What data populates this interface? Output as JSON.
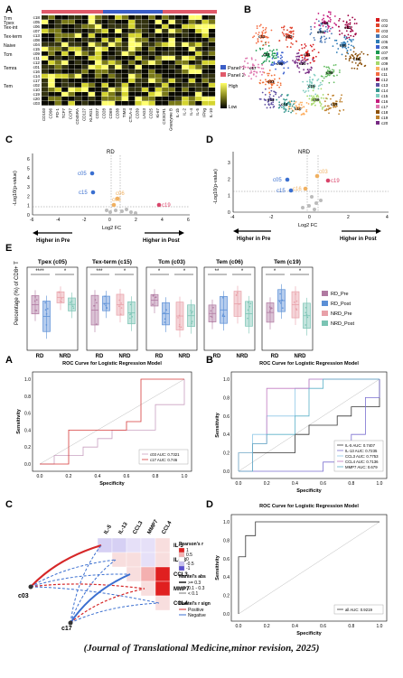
{
  "panel_letters": {
    "top": [
      "A",
      "B",
      "C",
      "D",
      "E"
    ],
    "bottom": [
      "A",
      "B",
      "C",
      "D"
    ]
  },
  "heatmap": {
    "rows": [
      "c18",
      "c05",
      "c06",
      "c07",
      "c13",
      "c08",
      "c04",
      "c15",
      "c09",
      "c11",
      "c12",
      "c01",
      "c16",
      "c14",
      "c17",
      "c02",
      "c10",
      "c19",
      "c20",
      "c03"
    ],
    "group_labels": [
      "Trm",
      "Tpex",
      "Tex-int",
      "Tex-term",
      "Naive",
      "Tcm",
      "Temra",
      "Tem"
    ],
    "columns": [
      "CD103",
      "CD96",
      "PD-1",
      "TCF7",
      "CCR7",
      "CD45RA",
      "CD127",
      "KLRG1",
      "CD27",
      "CD28",
      "CD69",
      "CD38",
      "TIM3",
      "CTLA-4",
      "CD39",
      "LAG3",
      "CD25",
      "Ki-67",
      "CX3CR1",
      "Granzyme B",
      "IL-1b",
      "IL-2",
      "IL-4",
      "IL-5",
      "IFNg",
      "IL-10"
    ],
    "legend": {
      "panel1": "Panel 1",
      "panel2": "Panel 2",
      "high": "High",
      "low": "Low"
    }
  },
  "umap": {
    "cluster_labels": [
      "c01",
      "c02",
      "c03",
      "c04",
      "c05",
      "c06",
      "c07",
      "c08",
      "c09",
      "c10",
      "c11",
      "c12",
      "c13",
      "c14",
      "c15",
      "c16",
      "c17",
      "c18",
      "c19",
      "c20"
    ],
    "colors": [
      "#d7191c",
      "#e0402a",
      "#f07038",
      "#4575b4",
      "#2c7bb6",
      "#3a5fcd",
      "#1a9850",
      "#66bd63",
      "#a6d96a",
      "#fdae61",
      "#f46d43",
      "#9e0142",
      "#5e4fa2",
      "#35978f",
      "#80cdc1",
      "#c51b7d",
      "#de77ae",
      "#8c510a",
      "#bf812d",
      "#762a83"
    ]
  },
  "volcano_C": {
    "title": "RD",
    "ylabel": "-Log10(p-value)",
    "xlabel": "Log2 FC",
    "xticks": [
      "-6",
      "-4",
      "-2",
      "0",
      "2",
      "4",
      "6"
    ],
    "yticks": [
      "0",
      "1",
      "2",
      "3",
      "4",
      "5",
      "6"
    ],
    "labels": [
      "c05",
      "c15",
      "c06",
      "c03",
      "c19"
    ],
    "arrows": {
      "left": "Higher in Pre",
      "right": "Higher in Post"
    }
  },
  "volcano_D": {
    "title": "NRD",
    "ylabel": "-Log10(p-value)",
    "xlabel": "Log2 FC",
    "xticks": [
      "-4",
      "-2",
      "0",
      "2",
      "4"
    ],
    "yticks": [
      "0",
      "1",
      "2",
      "3"
    ],
    "labels": [
      "c05",
      "c15",
      "c16",
      "c03",
      "c19"
    ],
    "arrows": {
      "left": "Higher in Pre",
      "right": "Higher in Post"
    }
  },
  "boxplots": {
    "ylabel": "Percentage (%) of CD8+ T",
    "panels": [
      {
        "title": "Tpex (c05)",
        "sig": [
          "****",
          "*"
        ]
      },
      {
        "title": "Tex-term (c15)",
        "sig": [
          "***",
          "*"
        ]
      },
      {
        "title": "Tcm (c03)",
        "sig": [
          "*",
          "*"
        ]
      },
      {
        "title": "Tem (c06)",
        "sig": [
          "**",
          "*"
        ]
      },
      {
        "title": "Tem (c19)",
        "sig": [
          "*",
          "*"
        ]
      }
    ],
    "xgroups": [
      "RD",
      "NRD"
    ],
    "legend": [
      "RD_Pre",
      "RD_Post",
      "NRD_Pre",
      "NRD_Post"
    ],
    "legend_colors": [
      "#b07aa1",
      "#5b8fd6",
      "#e8a0a8",
      "#7bc4b4"
    ]
  },
  "roc_A": {
    "title": "ROC Curve for Logistic Regression Model",
    "xlabel": "Specificity",
    "ylabel": "Sensitivity",
    "ticks": [
      "0.0",
      "0.2",
      "0.4",
      "0.6",
      "0.8",
      "1.0"
    ],
    "legend": [
      {
        "name": "c03 AUC: 0.7321",
        "color": "#c9a0c0"
      },
      {
        "name": "c17 AUC: 0.746",
        "color": "#d63a3a"
      }
    ]
  },
  "roc_B": {
    "title": "ROC Curve for Logistic Regression Model",
    "xlabel": "Specificity",
    "ylabel": "Sensitivity",
    "ticks": [
      "0.0",
      "0.2",
      "0.4",
      "0.6",
      "0.8",
      "1.0"
    ],
    "legend": [
      {
        "name": "IL-5 AUC: 0.7407",
        "color": "#333"
      },
      {
        "name": "IL-13 AUC: 0.7235",
        "color": "#7a6fd0"
      },
      {
        "name": "CCL3 AUC: 0.7753",
        "color": "#8fc8e8"
      },
      {
        "name": "CCL4 AUC: 0.7136",
        "color": "#c27ac2"
      },
      {
        "name": "MMP7 AUC: 0.679",
        "color": "#5ab0c8"
      }
    ]
  },
  "corr_C": {
    "genes": [
      "IL-5",
      "IL-13",
      "CCL3",
      "MMP7",
      "CCL4"
    ],
    "nodes": [
      "c03",
      "c17"
    ],
    "legend_title": "Pearson's r",
    "scale": [
      "1",
      "0.5",
      "0",
      "-0.5",
      "-1"
    ],
    "mantel_abs_title": "Mantel's abs",
    "mantel_abs": [
      ">= 0.3",
      "0.1 - 0.3",
      "< 0.1"
    ],
    "mantel_sign_title": "Mantel's r sign",
    "mantel_sign": [
      "Positive",
      "Negative"
    ]
  },
  "roc_D": {
    "title": "ROC Curve for Logistic Regression Model",
    "xlabel": "Specificity",
    "ylabel": "Sensitivity",
    "ticks": [
      "0.0",
      "0.2",
      "0.4",
      "0.6",
      "0.8",
      "1.0"
    ],
    "legend": [
      {
        "name": "all AUC: 0.9219",
        "color": "#333"
      }
    ]
  },
  "caption": "(Journal of Translational Medicine,minor revision, 2025)"
}
